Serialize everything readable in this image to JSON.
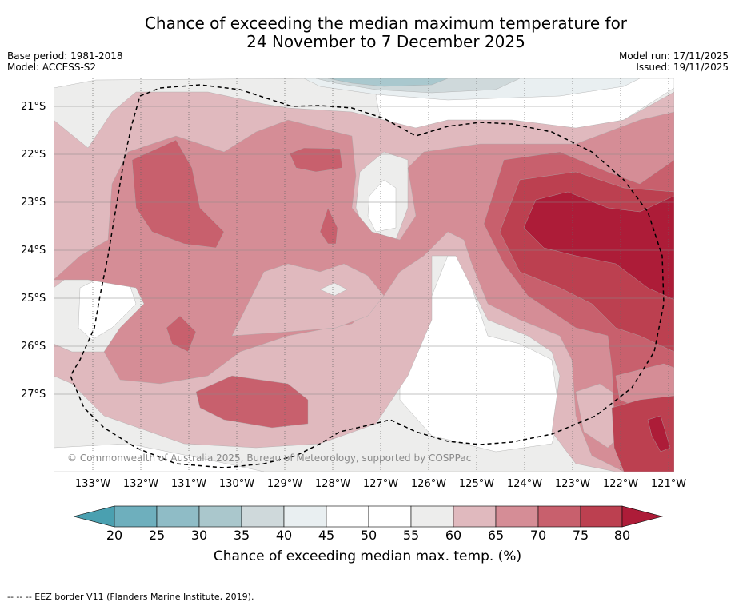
{
  "title": {
    "line1": "Chance of exceeding the median maximum temperature for",
    "line2": "24 November to 7 December 2025"
  },
  "meta_left": {
    "base_period": "Base period: 1981-2018",
    "model": "Model: ACCESS-S2"
  },
  "meta_right": {
    "model_run": "Model run: 17/11/2025",
    "issued": "Issued: 19/11/2025"
  },
  "map": {
    "latitude_labels": [
      "21°S",
      "22°S",
      "23°S",
      "24°S",
      "25°S",
      "26°S",
      "27°S"
    ],
    "longitude_labels": [
      "133°W",
      "132°W",
      "131°W",
      "130°W",
      "129°W",
      "128°W",
      "127°W",
      "126°W",
      "125°W",
      "124°W",
      "123°W",
      "122°W",
      "121°W"
    ],
    "copyright": "© Commonwealth of Australia 2025, Bureau of Meteorology, supported by COSPPac",
    "eez_color": "#000000"
  },
  "colorbar": {
    "ticks": [
      "20",
      "25",
      "30",
      "35",
      "40",
      "45",
      "50",
      "55",
      "60",
      "65",
      "70",
      "75",
      "80"
    ],
    "colors": [
      "#4aa0b0",
      "#6eafbd",
      "#8fbcc6",
      "#aac7cc",
      "#cfd9db",
      "#e9eff1",
      "#ffffff",
      "#ffffff",
      "#ededec",
      "#e0b9be",
      "#d58d96",
      "#c8606d",
      "#bc4050",
      "#ad1c38"
    ],
    "label": "Chance of exceeding median max. temp. (%)"
  },
  "footer": "--  --  -- EEZ border V11 (Flanders Marine Institute, 2019)."
}
